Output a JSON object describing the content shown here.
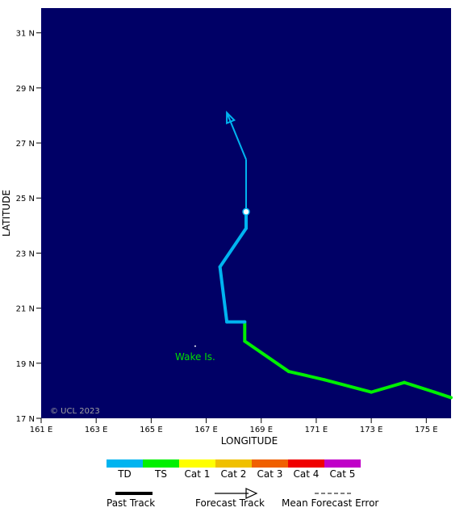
{
  "map": {
    "background_color": "#000066",
    "x_axis_title": "LONGITUDE",
    "y_axis_title": "LATITUDE",
    "x_ticks": [
      "161 E",
      "163 E",
      "165 E",
      "167 E",
      "169 E",
      "171 E",
      "173 E",
      "175 E"
    ],
    "y_ticks": [
      "17 N",
      "19 N",
      "21 N",
      "23 N",
      "25 N",
      "27 N",
      "29 N",
      "31 N"
    ],
    "lon_range": [
      161.0,
      175.9
    ],
    "lat_range": [
      17.0,
      31.9
    ],
    "credit": "© UCL 2023",
    "place_label": "Wake Is.",
    "place_lon": 166.6,
    "place_lat": 19.35,
    "current_position": {
      "lon": 168.45,
      "lat": 24.5
    },
    "past_track": [
      {
        "lon": 175.9,
        "lat": 17.75,
        "category": "Cat 1"
      },
      {
        "lon": 175.3,
        "lat": 17.95,
        "category": "TS"
      },
      {
        "lon": 174.2,
        "lat": 18.3,
        "category": "TS"
      },
      {
        "lon": 173.0,
        "lat": 17.95,
        "category": "TS"
      },
      {
        "lon": 171.3,
        "lat": 18.4,
        "category": "TS"
      },
      {
        "lon": 170.0,
        "lat": 18.7,
        "category": "TS"
      },
      {
        "lon": 168.4,
        "lat": 19.8,
        "category": "TS"
      },
      {
        "lon": 168.4,
        "lat": 20.5,
        "category": "TS"
      },
      {
        "lon": 167.75,
        "lat": 20.5,
        "category": "TD"
      },
      {
        "lon": 167.5,
        "lat": 22.5,
        "category": "TD"
      },
      {
        "lon": 168.45,
        "lat": 23.9,
        "category": "TD"
      },
      {
        "lon": 168.45,
        "lat": 24.5,
        "category": "TD"
      }
    ],
    "forecast_track": [
      {
        "lon": 168.45,
        "lat": 24.5,
        "category": "TD"
      },
      {
        "lon": 168.45,
        "lat": 26.4,
        "category": "TD"
      },
      {
        "lon": 167.75,
        "lat": 28.1,
        "category": "TD"
      }
    ]
  },
  "legend": {
    "categories": [
      {
        "label": "TD",
        "color": "#00b4f0"
      },
      {
        "label": "TS",
        "color": "#00f000"
      },
      {
        "label": "Cat 1",
        "color": "#ffff00"
      },
      {
        "label": "Cat 2",
        "color": "#f0c000"
      },
      {
        "label": "Cat 3",
        "color": "#f06000"
      },
      {
        "label": "Cat 4",
        "color": "#f00000"
      },
      {
        "label": "Cat 5",
        "color": "#c000c8"
      }
    ],
    "past_track_label": "Past Track",
    "forecast_track_label": "Forecast Track",
    "mean_error_label": "Mean Forecast Error"
  }
}
